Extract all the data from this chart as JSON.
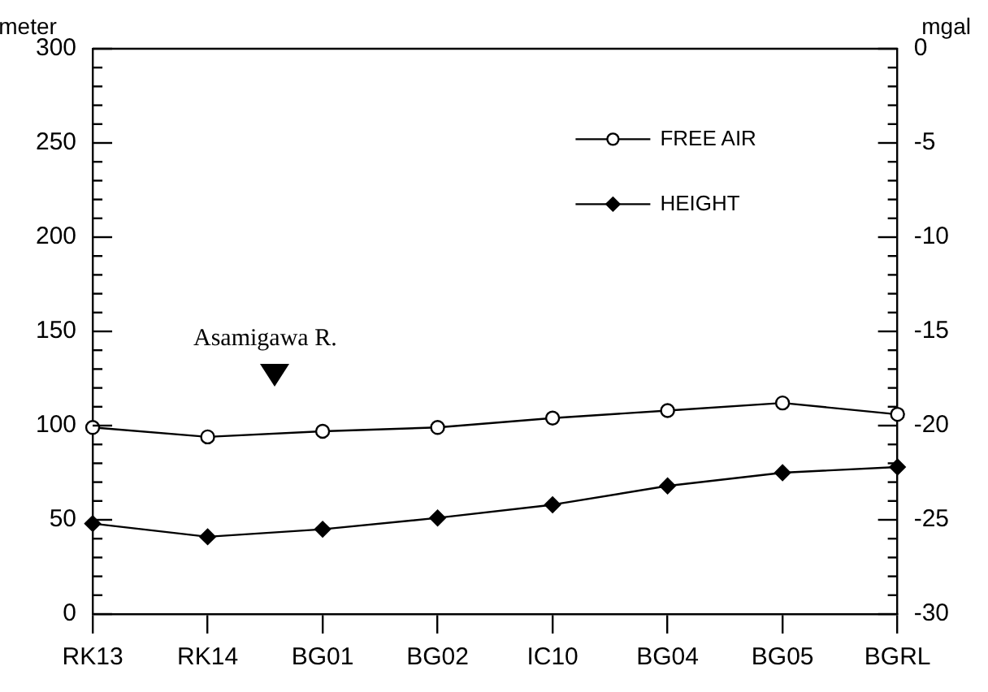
{
  "chart_data": {
    "type": "line",
    "ylabel": "meter",
    "y2label": "mgal",
    "categories": [
      "RK13",
      "RK14",
      "BG01",
      "BG02",
      "IC10",
      "BG04",
      "BG05",
      "BGRL"
    ],
    "series": [
      {
        "name": "FREE AIR",
        "color": "#000000",
        "axis": "y2",
        "marker": "circle",
        "values": [
          -20.1,
          -20.6,
          -20.3,
          -20.1,
          -19.6,
          -19.2,
          -18.8,
          -19.4
        ]
      },
      {
        "name": "HEIGHT",
        "color": "#000000",
        "axis": "y",
        "marker": "diamond",
        "values": [
          48,
          41,
          45,
          51,
          58,
          68,
          75,
          78
        ]
      }
    ],
    "ylim": [
      0,
      300
    ],
    "yticks": [
      0,
      {
        "value": 10,
        "label": null
      },
      {
        "value": 20,
        "label": null
      },
      {
        "value": 30,
        "label": null
      },
      {
        "value": 40,
        "label": null
      },
      50,
      {
        "value": 60,
        "label": null
      },
      {
        "value": 70,
        "label": null
      },
      {
        "value": 80,
        "label": null
      },
      {
        "value": 90,
        "label": null
      },
      100,
      {
        "value": 110,
        "label": null
      },
      {
        "value": 120,
        "label": null
      },
      {
        "value": 130,
        "label": null
      },
      {
        "value": 140,
        "label": null
      },
      150,
      {
        "value": 160,
        "label": null
      },
      {
        "value": 170,
        "label": null
      },
      {
        "value": 180,
        "label": null
      },
      {
        "value": 190,
        "label": null
      },
      200,
      {
        "value": 210,
        "label": null
      },
      {
        "value": 220,
        "label": null
      },
      {
        "value": 230,
        "label": null
      },
      {
        "value": 240,
        "label": null
      },
      250,
      {
        "value": 260,
        "label": null
      },
      {
        "value": 270,
        "label": null
      },
      {
        "value": 280,
        "label": null
      },
      {
        "value": 290,
        "label": null
      },
      300
    ],
    "y2lim": [
      -30,
      0
    ],
    "y2ticks": [
      -30,
      {
        "value": -29,
        "label": null
      },
      {
        "value": -28,
        "label": null
      },
      {
        "value": -27,
        "label": null
      },
      {
        "value": -26,
        "label": null
      },
      -25,
      {
        "value": -24,
        "label": null
      },
      {
        "value": -23,
        "label": null
      },
      {
        "value": -22,
        "label": null
      },
      {
        "value": -21,
        "label": null
      },
      -20,
      {
        "value": -19,
        "label": null
      },
      {
        "value": -18,
        "label": null
      },
      {
        "value": -17,
        "label": null
      },
      {
        "value": -16,
        "label": null
      },
      -15,
      {
        "value": -14,
        "label": null
      },
      {
        "value": -13,
        "label": null
      },
      {
        "value": -12,
        "label": null
      },
      {
        "value": -11,
        "label": null
      },
      -10,
      {
        "value": -9,
        "label": null
      },
      {
        "value": -8,
        "label": null
      },
      {
        "value": -7,
        "label": null
      },
      {
        "value": -6,
        "label": null
      },
      -5,
      {
        "value": -4,
        "label": null
      },
      {
        "value": -3,
        "label": null
      },
      {
        "value": -2,
        "label": null
      },
      {
        "value": -1,
        "label": null
      },
      0
    ],
    "annotations": [
      "Asamigawa R."
    ],
    "grid": false,
    "legend": "top right",
    "line_style": "solid"
  }
}
